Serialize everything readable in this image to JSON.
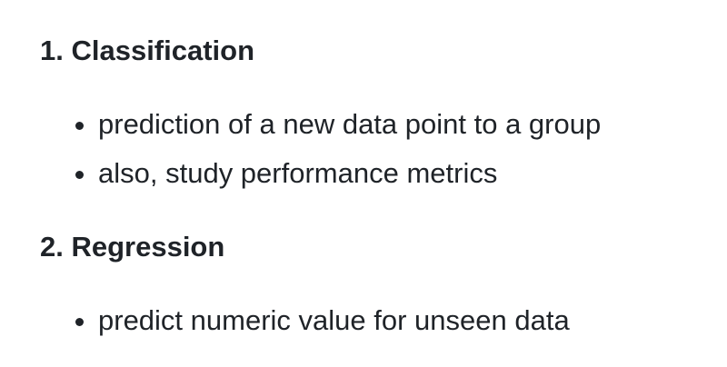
{
  "sections": [
    {
      "heading": "1. Classification",
      "items": [
        "prediction of a new data point to a group",
        "also, study performance metrics"
      ]
    },
    {
      "heading": "2. Regression",
      "items": [
        "predict numeric value for unseen data"
      ]
    }
  ]
}
